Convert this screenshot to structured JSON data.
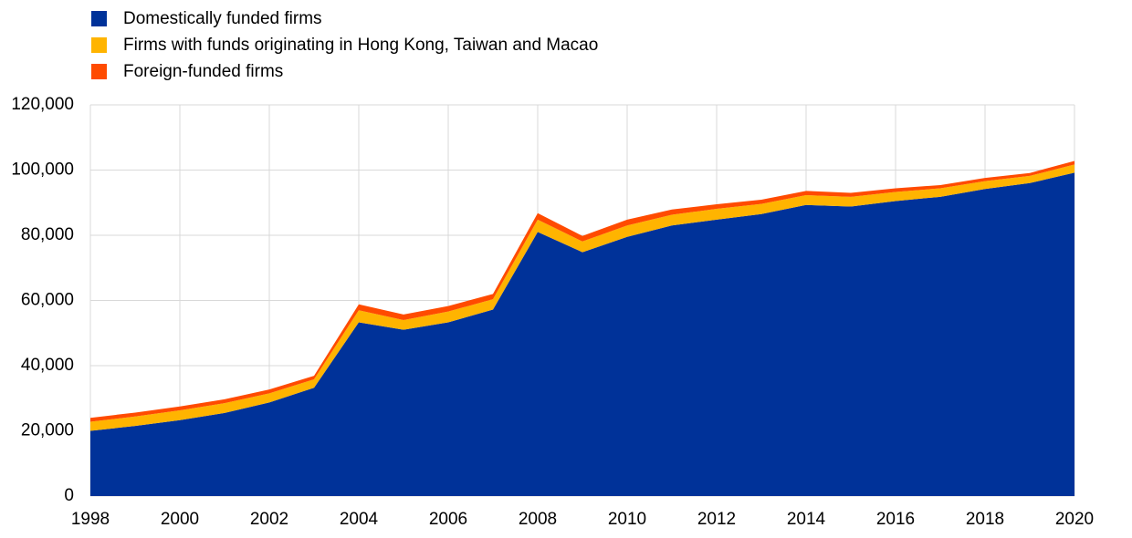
{
  "chart_data": {
    "type": "stacked_area",
    "x": [
      1998,
      1999,
      2000,
      2001,
      2002,
      2003,
      2004,
      2005,
      2006,
      2007,
      2008,
      2009,
      2010,
      2011,
      2012,
      2013,
      2014,
      2015,
      2016,
      2017,
      2018,
      2019,
      2020
    ],
    "series": [
      {
        "name": "Domestically funded firms",
        "color": "#003299",
        "values": [
          20000,
          21500,
          23300,
          25500,
          28700,
          33200,
          53300,
          51000,
          53300,
          57200,
          81000,
          74800,
          79500,
          83000,
          84800,
          86500,
          89300,
          88800,
          90500,
          91800,
          94200,
          96000,
          99200
        ]
      },
      {
        "name": "Firms with funds originating in Hong Kong, Taiwan and Macao",
        "color": "#ffb400",
        "values": [
          2800,
          2900,
          3000,
          3000,
          2800,
          2600,
          3700,
          3000,
          3300,
          3200,
          3800,
          3300,
          3500,
          3300,
          3300,
          3100,
          3000,
          3000,
          2800,
          2600,
          2400,
          2200,
          2500
        ]
      },
      {
        "name": "Foreign-funded firms",
        "color": "#ff4b00",
        "values": [
          1200,
          1200,
          1200,
          1200,
          1200,
          1100,
          1800,
          1700,
          1700,
          1600,
          2000,
          1700,
          1800,
          1600,
          1400,
          1300,
          1300,
          1200,
          1100,
          1000,
          1000,
          900,
          1100
        ]
      }
    ],
    "xlim": [
      1998,
      2020
    ],
    "xticks": [
      1998,
      2000,
      2002,
      2004,
      2006,
      2008,
      2010,
      2012,
      2014,
      2016,
      2018,
      2020
    ],
    "ylim": [
      0,
      120000
    ],
    "yticks": [
      0,
      {
        "value": 20000,
        "label": "20,000"
      },
      {
        "value": 40000,
        "label": "40,000"
      },
      {
        "value": 60000,
        "label": "60,000"
      },
      {
        "value": 80000,
        "label": "80,000"
      },
      {
        "value": 100000,
        "label": "100,000"
      },
      {
        "value": 120000,
        "label": "120,000"
      }
    ],
    "grid": true,
    "legend": "top-left"
  }
}
